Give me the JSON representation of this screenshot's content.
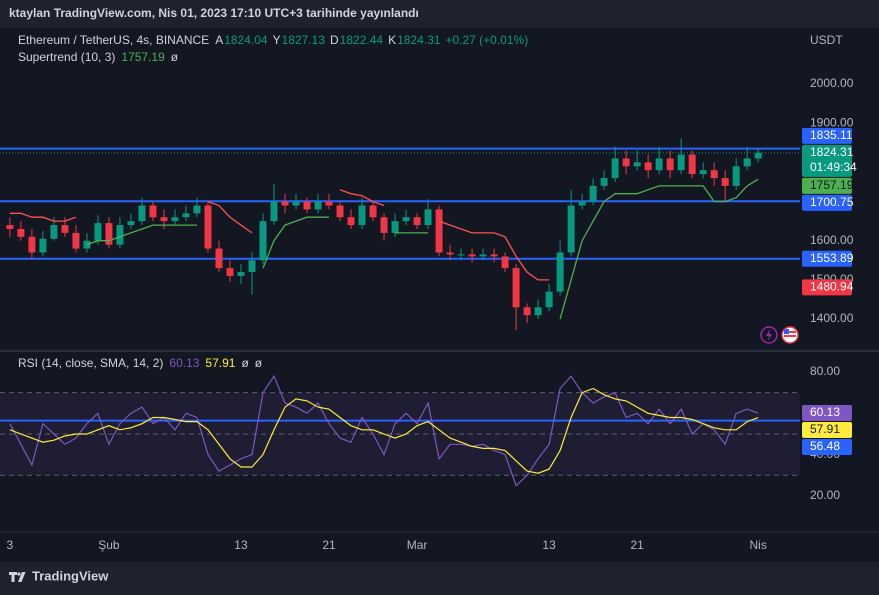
{
  "watermark": "ktaylan TradingView.com, Nis 01, 2023 17:10 UTC+3 tarihinde yayınlandı",
  "footer": "TradingView",
  "chart_data": {
    "type": "candlestick",
    "currency": "USDT",
    "legend": {
      "symbol": "Ethereum / TetherUS, 4s, BINANCE",
      "ohlc": [
        [
          "A",
          "1824.04"
        ],
        [
          "Y",
          "1827.13"
        ],
        [
          "D",
          "1822.44"
        ],
        [
          "K",
          "1824.31"
        ]
      ],
      "change": "+0.27 (+0.01%)"
    },
    "x": [
      0,
      1,
      2,
      3,
      4,
      5,
      6,
      7,
      8,
      9,
      10,
      11,
      12,
      13,
      14,
      15,
      16,
      17,
      18,
      19,
      20,
      21,
      22,
      23,
      24,
      25,
      26,
      27,
      28,
      29,
      30,
      31,
      32,
      33,
      34,
      35,
      36,
      37,
      38,
      39,
      40,
      41,
      42,
      43,
      44,
      45,
      46,
      47,
      48,
      49,
      50,
      51,
      52,
      53,
      54,
      55,
      56,
      57,
      58,
      59,
      60,
      61,
      62,
      63,
      64,
      65,
      66,
      67,
      68
    ],
    "xlim": [
      -0.9,
      71.8
    ],
    "xticks": [
      {
        "value": 0,
        "label": "3"
      },
      {
        "value": 9,
        "label": "Şub"
      },
      {
        "value": 21,
        "label": "13"
      },
      {
        "value": 29,
        "label": "21"
      },
      {
        "value": 37,
        "label": "Mar"
      },
      {
        "value": 49,
        "label": "13"
      },
      {
        "value": 57,
        "label": "21"
      },
      {
        "value": 68,
        "label": "Nis"
      }
    ],
    "open": [
      1640,
      1630,
      1610,
      1570,
      1605,
      1640,
      1620,
      1580,
      1600,
      1645,
      1590,
      1640,
      1650,
      1690,
      1660,
      1650,
      1660,
      1670,
      1690,
      1580,
      1530,
      1510,
      1520,
      1550,
      1650,
      1700,
      1690,
      1700,
      1680,
      1700,
      1690,
      1660,
      1640,
      1690,
      1660,
      1620,
      1650,
      1660,
      1640,
      1680,
      1570,
      1565,
      1565,
      1560,
      1565,
      1560,
      1530,
      1430,
      1410,
      1430,
      1470,
      1570,
      1690,
      1700,
      1740,
      1760,
      1810,
      1790,
      1800,
      1780,
      1810,
      1780,
      1820,
      1770,
      1780,
      1760,
      1740,
      1790,
      1810
    ],
    "high": [
      1660,
      1650,
      1630,
      1625,
      1660,
      1660,
      1640,
      1620,
      1665,
      1660,
      1660,
      1670,
      1710,
      1700,
      1680,
      1680,
      1690,
      1710,
      1700,
      1600,
      1550,
      1540,
      1570,
      1670,
      1745,
      1720,
      1720,
      1710,
      1720,
      1720,
      1700,
      1680,
      1710,
      1700,
      1670,
      1670,
      1680,
      1670,
      1706,
      1690,
      1590,
      1580,
      1580,
      1580,
      1580,
      1570,
      1540,
      1440,
      1450,
      1490,
      1600,
      1730,
      1720,
      1760,
      1780,
      1840,
      1830,
      1830,
      1820,
      1840,
      1830,
      1862,
      1830,
      1800,
      1800,
      1780,
      1810,
      1840,
      1835
    ],
    "low": [
      1610,
      1600,
      1555,
      1560,
      1600,
      1610,
      1570,
      1570,
      1590,
      1580,
      1580,
      1630,
      1640,
      1650,
      1630,
      1640,
      1650,
      1660,
      1570,
      1520,
      1495,
      1490,
      1462,
      1540,
      1640,
      1670,
      1680,
      1670,
      1670,
      1680,
      1650,
      1630,
      1630,
      1650,
      1600,
      1610,
      1640,
      1630,
      1630,
      1560,
      1550,
      1550,
      1545,
      1550,
      1545,
      1520,
      1372,
      1390,
      1400,
      1420,
      1460,
      1560,
      1680,
      1690,
      1730,
      1750,
      1770,
      1780,
      1760,
      1770,
      1760,
      1770,
      1760,
      1760,
      1740,
      1700,
      1730,
      1780,
      1800
    ],
    "close": [
      1630,
      1610,
      1570,
      1605,
      1640,
      1620,
      1580,
      1600,
      1645,
      1590,
      1640,
      1650,
      1690,
      1660,
      1650,
      1660,
      1670,
      1690,
      1580,
      1530,
      1510,
      1520,
      1550,
      1650,
      1700,
      1690,
      1700,
      1680,
      1700,
      1690,
      1660,
      1640,
      1690,
      1660,
      1620,
      1650,
      1660,
      1640,
      1680,
      1570,
      1565,
      1565,
      1560,
      1565,
      1560,
      1530,
      1430,
      1410,
      1430,
      1470,
      1570,
      1690,
      1700,
      1740,
      1760,
      1810,
      1790,
      1800,
      1780,
      1810,
      1780,
      1820,
      1770,
      1780,
      1760,
      1740,
      1790,
      1810,
      1824.31
    ],
    "up_color": "#089981",
    "down_color": "#f23645",
    "ylim": [
      1321,
      2138
    ],
    "yticks": [
      {
        "value": 2000,
        "label": "2000.00"
      },
      {
        "value": 1900,
        "label": "1900.00"
      },
      {
        "value": 1600,
        "label": "1600.00"
      },
      {
        "value": 1500,
        "label": "1500.00"
      },
      {
        "value": 1400,
        "label": "1400.00"
      }
    ],
    "last_price_countdown": "01:49:34",
    "supertrend": {
      "name": "Supertrend (10, 3)",
      "status": "ø",
      "up": {
        "color": "#4caf50",
        "values": [
          null,
          null,
          null,
          null,
          null,
          null,
          null,
          1590,
          1600,
          1600,
          1610,
          1620,
          1630,
          1640,
          1640,
          1640,
          1640,
          1640,
          null,
          null,
          null,
          null,
          null,
          1530,
          1600,
          1640,
          1650,
          1660,
          1660,
          1660,
          null,
          null,
          null,
          null,
          null,
          1620,
          1620,
          1620,
          1620,
          null,
          null,
          null,
          null,
          null,
          null,
          null,
          null,
          null,
          null,
          null,
          1400,
          1500,
          1600,
          1650,
          1700,
          1720,
          1720,
          1720,
          1730,
          1740,
          1740,
          1740,
          1740,
          1740,
          1700,
          1700,
          1710,
          1740,
          1757.19
        ]
      },
      "down": {
        "color": "#ff5252",
        "values": [
          1670,
          1670,
          1660,
          1660,
          1650,
          1650,
          1660,
          null,
          null,
          null,
          null,
          null,
          null,
          null,
          null,
          null,
          null,
          null,
          1700,
          1690,
          1660,
          1640,
          1620,
          null,
          null,
          null,
          null,
          null,
          null,
          null,
          1730,
          1720,
          1715,
          1700,
          1690,
          null,
          null,
          null,
          null,
          1650,
          1640,
          1630,
          1620,
          1620,
          1620,
          1610,
          1560,
          1520,
          1500,
          1500,
          null,
          null,
          null,
          null,
          null,
          null,
          null,
          null,
          null,
          null,
          null,
          null,
          null,
          null,
          null,
          null,
          null,
          null,
          null
        ]
      }
    },
    "levels": [
      {
        "value": 1835.11,
        "color": "#2962ff"
      },
      {
        "value": 1700.75,
        "color": "#2962ff"
      },
      {
        "value": 1553.89,
        "color": "#2962ff"
      }
    ],
    "marker": {
      "value": 1480.94,
      "color": "#f23645"
    },
    "rsi": {
      "name": "RSI (14, close, SMA, 14, 2)",
      "color": "#7e57c2",
      "values": [
        55,
        45,
        35,
        55,
        50,
        45,
        48,
        55,
        60,
        45,
        55,
        60,
        63,
        55,
        58,
        52,
        60,
        58,
        40,
        32,
        35,
        38,
        40,
        70,
        78,
        65,
        63,
        60,
        65,
        55,
        48,
        46,
        58,
        50,
        40,
        55,
        60,
        55,
        65,
        38,
        45,
        45,
        44,
        45,
        42,
        40,
        25,
        30,
        38,
        45,
        72,
        78,
        70,
        65,
        68,
        70,
        58,
        60,
        55,
        62,
        55,
        62,
        50,
        55,
        52,
        45,
        60,
        62,
        60.13
      ],
      "sma": {
        "color": "#ffeb3b",
        "values": [
          52,
          50,
          48,
          46,
          47,
          49,
          50,
          50,
          52,
          54,
          52,
          53,
          55,
          58,
          58,
          57,
          56,
          56,
          52,
          45,
          38,
          34,
          34,
          40,
          52,
          63,
          67,
          66,
          63,
          62,
          58,
          54,
          52,
          52,
          50,
          48,
          50,
          54,
          56,
          52,
          48,
          46,
          44,
          43,
          43,
          42,
          37,
          32,
          31,
          33,
          42,
          58,
          70,
          72,
          69,
          67,
          66,
          63,
          60,
          59,
          58,
          58,
          57,
          55,
          53,
          52,
          52,
          56,
          57.91
        ]
      },
      "status": [
        "ø",
        "ø"
      ],
      "ylim": [
        3.5,
        89.7
      ],
      "yticks": [
        {
          "value": 80,
          "label": "80.00"
        },
        {
          "value": 40,
          "label": "40.00"
        },
        {
          "value": 20,
          "label": "20.00"
        }
      ],
      "bands": [
        70,
        50,
        30
      ],
      "level": {
        "value": 56.48,
        "color": "#2962ff"
      }
    }
  }
}
